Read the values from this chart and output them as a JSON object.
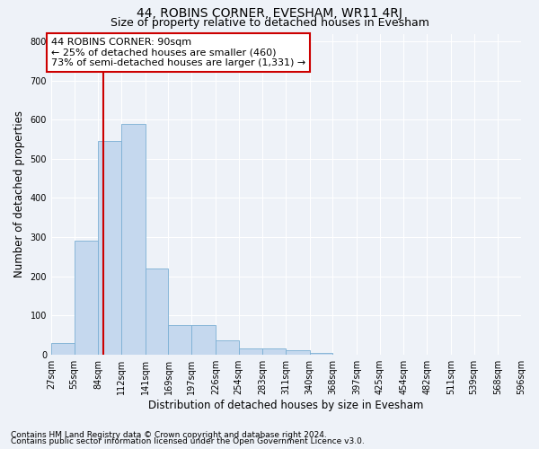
{
  "title": "44, ROBINS CORNER, EVESHAM, WR11 4RJ",
  "subtitle": "Size of property relative to detached houses in Evesham",
  "xlabel": "Distribution of detached houses by size in Evesham",
  "ylabel": "Number of detached properties",
  "footnote1": "Contains HM Land Registry data © Crown copyright and database right 2024.",
  "footnote2": "Contains public sector information licensed under the Open Government Licence v3.0.",
  "bin_edges": [
    27,
    55,
    84,
    112,
    141,
    169,
    197,
    226,
    254,
    283,
    311,
    340,
    368,
    397,
    425,
    454,
    482,
    511,
    539,
    568,
    596
  ],
  "bar_heights": [
    30,
    290,
    545,
    590,
    220,
    75,
    75,
    35,
    15,
    15,
    10,
    5,
    0,
    0,
    0,
    0,
    0,
    0,
    0,
    0
  ],
  "bar_color": "#c5d8ee",
  "bar_edge_color": "#7bafd4",
  "property_size": 90,
  "vline_color": "#cc0000",
  "annotation_line1": "44 ROBINS CORNER: 90sqm",
  "annotation_line2": "← 25% of detached houses are smaller (460)",
  "annotation_line3": "73% of semi-detached houses are larger (1,331) →",
  "annotation_box_color": "#ffffff",
  "annotation_box_edge": "#cc0000",
  "ylim": [
    0,
    820
  ],
  "yticks": [
    0,
    100,
    200,
    300,
    400,
    500,
    600,
    700,
    800
  ],
  "bg_color": "#eef2f8",
  "grid_color": "#ffffff",
  "title_fontsize": 10,
  "subtitle_fontsize": 9,
  "axis_label_fontsize": 8.5,
  "tick_fontsize": 7,
  "annotation_fontsize": 8,
  "footnote_fontsize": 6.5
}
